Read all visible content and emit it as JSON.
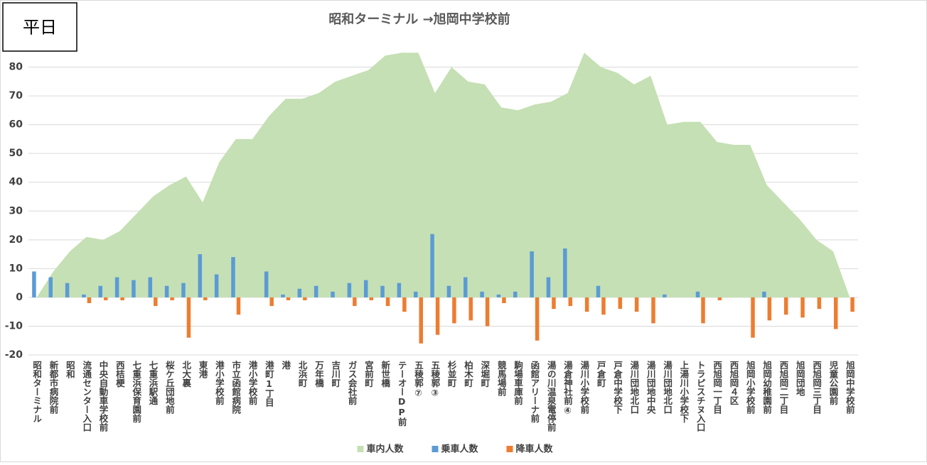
{
  "chart_data": {
    "type": "combo",
    "title": "昭和ターミナル →旭岡中学校前",
    "annotation": "平日",
    "categories": [
      "昭和ターミナル",
      "新都市病院前",
      "昭和",
      "流通センター入口",
      "中央自動車学校前",
      "西桔梗",
      "七重浜保育園前",
      "七重浜駅通",
      "桜ケ丘団地前",
      "北大裏",
      "東港",
      "港小学校前",
      "市立函館病院",
      "港小学校前",
      "港町1丁目",
      "港",
      "北浜町",
      "万年橋",
      "吉川町",
      "ガス会社前",
      "宮前町",
      "新世橋",
      "テーオーDP前",
      "五稜郭⑦",
      "五稜郭③",
      "杉並町",
      "柏木町",
      "深堀町",
      "競馬場前",
      "駒場車庫前",
      "函館アリーナ前",
      "湯の川温泉電停前",
      "湯倉神社前④",
      "湯川小学校前",
      "戸倉町",
      "戸倉中学校下",
      "湯川団地北口",
      "湯川団地中央",
      "湯川団地北口",
      "上湯川小学校下",
      "トラピスチヌ入口",
      "西旭岡一丁目",
      "西旭岡４区",
      "旭岡小学校前",
      "旭岡幼稚園前",
      "西旭岡二丁目",
      "旭岡団地",
      "西旭岡三丁目",
      "児童公園前",
      "旭岡中学校前"
    ],
    "series": [
      {
        "name": "車内人数",
        "type": "area",
        "color": "#c5e0b4",
        "values": [
          0,
          9,
          16,
          21,
          20,
          23,
          29,
          35,
          39,
          42,
          33,
          47,
          55,
          55,
          63,
          69,
          69,
          71,
          75,
          77,
          79,
          84,
          85,
          85,
          71,
          80,
          75,
          74,
          66,
          65,
          67,
          68,
          71,
          85,
          80,
          78,
          74,
          77,
          60,
          61,
          61,
          54,
          53,
          53,
          39,
          33,
          27,
          20,
          16,
          0
        ]
      },
      {
        "name": "乗車人数",
        "type": "bar",
        "color": "#5b9bd5",
        "values": [
          9,
          7,
          5,
          1,
          4,
          7,
          6,
          7,
          4,
          5,
          15,
          8,
          14,
          0,
          9,
          1,
          3,
          4,
          2,
          5,
          6,
          4,
          5,
          2,
          22,
          4,
          7,
          2,
          1,
          2,
          16,
          7,
          17,
          0,
          4,
          0,
          0,
          0,
          1,
          0,
          2,
          0,
          0,
          0,
          2,
          0,
          0,
          0,
          0,
          0
        ]
      },
      {
        "name": "降車人数",
        "type": "bar",
        "color": "#ed7d31",
        "values": [
          0,
          0,
          0,
          -2,
          -1,
          -1,
          0,
          -3,
          -1,
          -14,
          -1,
          0,
          -6,
          0,
          -3,
          -1,
          -1,
          0,
          0,
          -3,
          -1,
          -3,
          -5,
          -16,
          -13,
          -9,
          -8,
          -10,
          -2,
          0,
          -15,
          -4,
          -3,
          -5,
          -6,
          -4,
          -5,
          -9,
          0,
          0,
          -9,
          -1,
          0,
          -14,
          -8,
          -6,
          -7,
          -4,
          -11,
          -5
        ]
      }
    ],
    "ylim": [
      -20,
      90
    ],
    "yticks": [
      -20,
      -10,
      0,
      10,
      20,
      30,
      40,
      50,
      60,
      70,
      80
    ],
    "grid": true
  }
}
